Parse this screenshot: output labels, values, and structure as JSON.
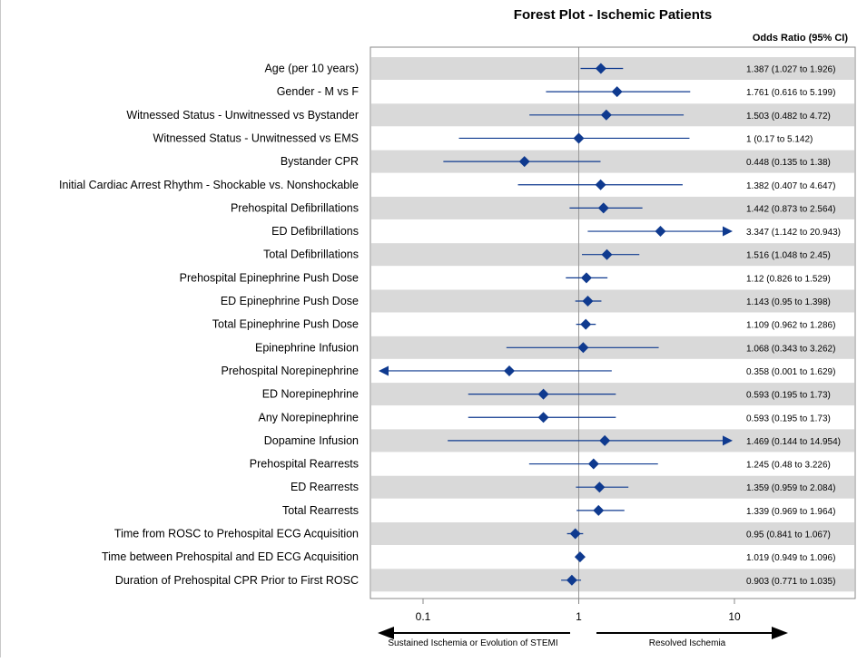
{
  "chart_data": {
    "type": "forest",
    "title": "Forest Plot - Ischemic Patients",
    "estimate_header": "Odds Ratio (95% CI)",
    "x_scale": "log",
    "xlim": [
      0.05,
      15
    ],
    "reference_line": 1,
    "x_ticks": [
      {
        "value": 0.1,
        "label": "0.1"
      },
      {
        "value": 1,
        "label": "1"
      },
      {
        "value": 10,
        "label": "10"
      }
    ],
    "row_shading": "alternating",
    "colors": {
      "marker": "#0f3a8f",
      "band": "#d9d9d9",
      "axis": "#888888",
      "ref": "#999999"
    },
    "direction_labels": {
      "left": "Sustained Ischemia or Evolution of STEMI",
      "right": "Resolved Ischemia"
    },
    "rows": [
      {
        "label": "Age (per 10 years)",
        "or": 1.387,
        "lo": 1.027,
        "hi": 1.926,
        "ci_text": "1.387 (1.027 to 1.926)"
      },
      {
        "label": "Gender - M vs F",
        "or": 1.761,
        "lo": 0.616,
        "hi": 5.199,
        "ci_text": "1.761 (0.616 to 5.199)"
      },
      {
        "label": "Witnessed Status - Unwitnessed vs Bystander",
        "or": 1.503,
        "lo": 0.482,
        "hi": 4.72,
        "ci_text": "1.503 (0.482 to 4.72)"
      },
      {
        "label": "Witnessed Status - Unwitnessed vs EMS",
        "or": 1,
        "lo": 0.17,
        "hi": 5.142,
        "ci_text": "1 (0.17 to 5.142)"
      },
      {
        "label": "Bystander CPR",
        "or": 0.448,
        "lo": 0.135,
        "hi": 1.38,
        "ci_text": "0.448 (0.135 to 1.38)"
      },
      {
        "label": "Initial Cardiac Arrest Rhythm - Shockable vs. Nonshockable",
        "or": 1.382,
        "lo": 0.407,
        "hi": 4.647,
        "ci_text": "1.382 (0.407 to 4.647)"
      },
      {
        "label": "Prehospital Defibrillations",
        "or": 1.442,
        "lo": 0.873,
        "hi": 2.564,
        "ci_text": "1.442 (0.873 to 2.564)"
      },
      {
        "label": "ED Defibrillations",
        "or": 3.347,
        "lo": 1.142,
        "hi": 20.943,
        "ci_text": "3.347 (1.142 to 20.943)"
      },
      {
        "label": "Total Defibrillations",
        "or": 1.516,
        "lo": 1.048,
        "hi": 2.45,
        "ci_text": "1.516 (1.048 to 2.45)"
      },
      {
        "label": "Prehospital Epinephrine Push Dose",
        "or": 1.12,
        "lo": 0.826,
        "hi": 1.529,
        "ci_text": "1.12 (0.826 to 1.529)"
      },
      {
        "label": "ED Epinephrine Push Dose",
        "or": 1.143,
        "lo": 0.95,
        "hi": 1.398,
        "ci_text": "1.143 (0.95 to 1.398)"
      },
      {
        "label": "Total Epinephrine Push Dose",
        "or": 1.109,
        "lo": 0.962,
        "hi": 1.286,
        "ci_text": "1.109 (0.962 to 1.286)"
      },
      {
        "label": "Epinephrine Infusion",
        "or": 1.068,
        "lo": 0.343,
        "hi": 3.262,
        "ci_text": "1.068 (0.343 to 3.262)"
      },
      {
        "label": "Prehospital Norepinephrine",
        "or": 0.358,
        "lo": 0.001,
        "hi": 1.629,
        "ci_text": "0.358 (0.001 to 1.629)"
      },
      {
        "label": "ED Norepinephrine",
        "or": 0.593,
        "lo": 0.195,
        "hi": 1.73,
        "ci_text": "0.593 (0.195 to 1.73)"
      },
      {
        "label": "Any Norepinephrine",
        "or": 0.593,
        "lo": 0.195,
        "hi": 1.73,
        "ci_text": "0.593 (0.195 to 1.73)"
      },
      {
        "label": "Dopamine Infusion",
        "or": 1.469,
        "lo": 0.144,
        "hi": 14.954,
        "ci_text": "1.469 (0.144 to 14.954)"
      },
      {
        "label": "Prehospital Rearrests",
        "or": 1.245,
        "lo": 0.48,
        "hi": 3.226,
        "ci_text": "1.245 (0.48 to 3.226)"
      },
      {
        "label": "ED Rearrests",
        "or": 1.359,
        "lo": 0.959,
        "hi": 2.084,
        "ci_text": "1.359 (0.959 to 2.084)"
      },
      {
        "label": "Total Rearrests",
        "or": 1.339,
        "lo": 0.969,
        "hi": 1.964,
        "ci_text": "1.339 (0.969 to 1.964)"
      },
      {
        "label": "Time from ROSC to Prehospital ECG Acquisition",
        "or": 0.95,
        "lo": 0.841,
        "hi": 1.067,
        "ci_text": "0.95 (0.841 to 1.067)"
      },
      {
        "label": "Time between Prehospital and ED ECG Acquisition",
        "or": 1.019,
        "lo": 0.949,
        "hi": 1.096,
        "ci_text": "1.019 (0.949 to 1.096)"
      },
      {
        "label": "Duration of Prehospital CPR Prior to First ROSC",
        "or": 0.903,
        "lo": 0.771,
        "hi": 1.035,
        "ci_text": "0.903 (0.771 to 1.035)"
      }
    ]
  }
}
